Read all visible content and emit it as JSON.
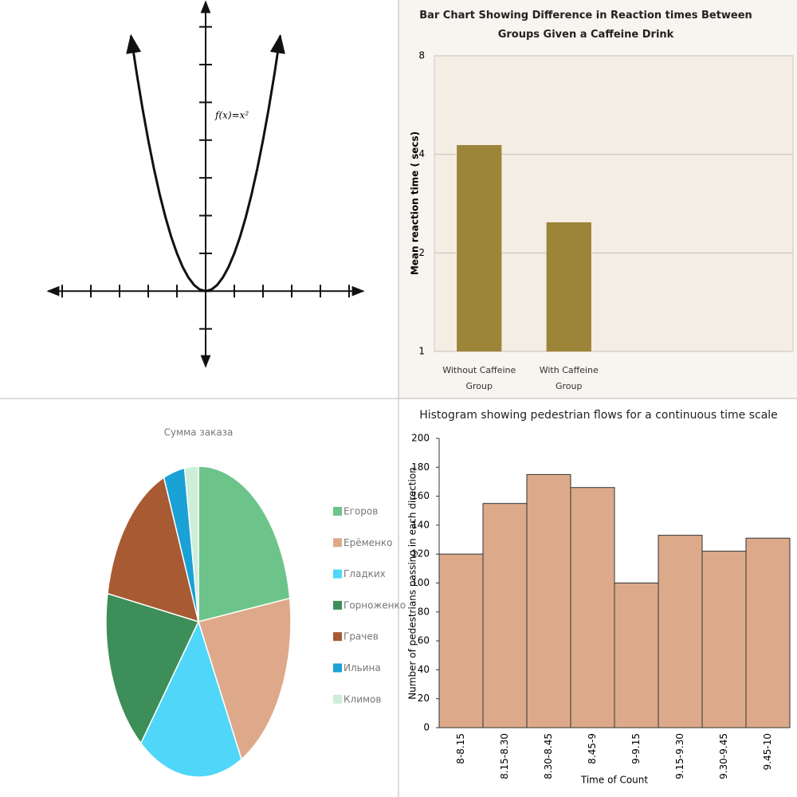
{
  "chart_data": [
    {
      "type": "line",
      "annotation": "f(x)=x²",
      "color": "#111111",
      "x": [
        -2.6,
        -2.4,
        -2.2,
        -2,
        -1.8,
        -1.6,
        -1.4,
        -1.2,
        -1,
        -0.8,
        -0.6,
        -0.4,
        -0.2,
        0,
        0.2,
        0.4,
        0.6,
        0.8,
        1,
        1.2,
        1.4,
        1.6,
        1.8,
        2,
        2.2,
        2.4,
        2.6
      ],
      "values": [
        6.76,
        5.76,
        4.84,
        4,
        3.24,
        2.56,
        1.96,
        1.44,
        1,
        0.64,
        0.36,
        0.16,
        0.04,
        0,
        0.04,
        0.16,
        0.36,
        0.64,
        1,
        1.44,
        1.96,
        2.56,
        3.24,
        4,
        4.84,
        5.76,
        6.76
      ],
      "xlim": [
        -5.5,
        5.5
      ],
      "xticks": [
        -5,
        -4,
        -3,
        -2,
        -1,
        0,
        1,
        2,
        3,
        4,
        5
      ],
      "ylim": [
        -2,
        7.5
      ],
      "yticks": [
        -1,
        0,
        1,
        2,
        3,
        4,
        5,
        6,
        7
      ]
    },
    {
      "type": "bar",
      "title": "Bar Chart Showing Difference in Reaction times Between Groups Given a Caffeine Drink",
      "ylabel": "Mean reaction time ( secs)",
      "categories": [
        "Without Caffeine Group",
        "With Caffeine Group",
        null,
        null
      ],
      "values": [
        4.27,
        2.48,
        null,
        null
      ],
      "color": "#9c8538",
      "ylim": [
        1,
        8
      ],
      "yticks": [
        1,
        2,
        4,
        8
      ],
      "log_scale": true,
      "grid": true
    },
    {
      "type": "pie",
      "title": "Сумма заказа",
      "categories": [
        "Егоров",
        "Ерёменко",
        "Гладких",
        "Горноженко",
        "Грачев",
        "Ильина",
        "Климов"
      ],
      "values": [
        22.6,
        19.7,
        18.4,
        17.2,
        16,
        3.7,
        2.4
      ],
      "colors": [
        "#6cc48a",
        "#dea98a",
        "#4fd6f8",
        "#3d8e58",
        "#a85a33",
        "#1aa1d6",
        "#cdeed8"
      ],
      "legend": "right"
    },
    {
      "type": "bar",
      "title": "Histogram showing pedestrian flows for a continuous time scale",
      "xlabel": "Time of Count",
      "ylabel": "Number of pedestrians passing in each direction",
      "categories": [
        "8-8.15",
        "8.15-8.30",
        "8.30-8.45",
        "8.45-9",
        "9-9.15",
        "9.15-9.30",
        "9.30-9.45",
        "9.45-10"
      ],
      "values": [
        120,
        155,
        175,
        166,
        100,
        133,
        122,
        131
      ],
      "color": "#dcaa8a",
      "ylim": [
        0,
        200
      ],
      "yticks": [
        0,
        20,
        40,
        60,
        80,
        100,
        120,
        140,
        160,
        180,
        200
      ],
      "grid": false
    }
  ]
}
